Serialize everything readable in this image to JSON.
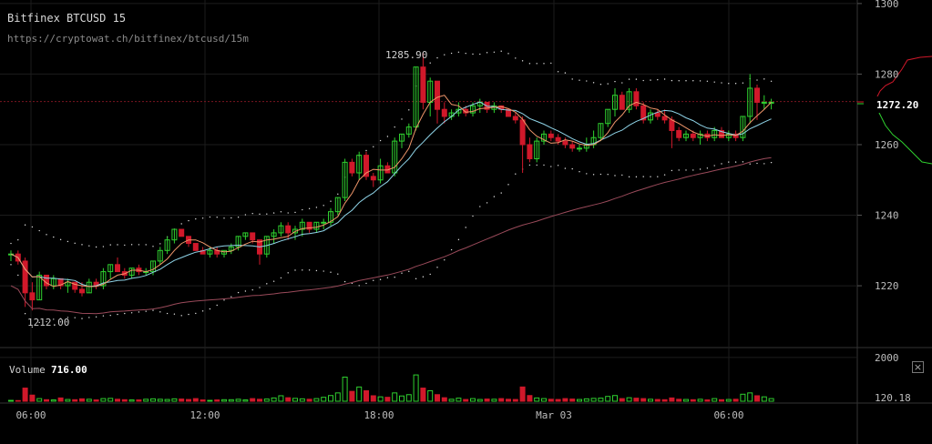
{
  "header": {
    "title": "Bitfinex BTCUSD 15",
    "url": "https://cryptowat.ch/bitfinex/btcusd/15m"
  },
  "volume_panel": {
    "label": "Volume",
    "value": "716.00",
    "close_icon": "close-icon"
  },
  "annotations": {
    "high_label": "1285.90",
    "low_label": "1212.00",
    "last_price": "1272.20"
  },
  "colors": {
    "up": "#2fd02f",
    "down": "#d0182a",
    "ma_fast": "#f0966a",
    "ma_mid": "#8fd4e8",
    "ma_slow": "#9a4a5a",
    "band": "#e0e0e0",
    "grid": "#1c1c1c"
  },
  "chart_data": {
    "type": "candlestick",
    "price_axis": {
      "min": 1203,
      "max": 1301,
      "ticks": [
        1300,
        1280,
        1260,
        1240,
        1220
      ]
    },
    "time_ticks": [
      "06:00",
      "12:00",
      "18:00",
      "Mar 03",
      "06:00"
    ],
    "volume_axis": {
      "ticks": [
        2000
      ],
      "last_volume": "120.18"
    },
    "last_price": 1272.2,
    "ohlc": [
      [
        1229,
        1230,
        1227,
        1229,
        40
      ],
      [
        1229,
        1230,
        1226,
        1227,
        30
      ],
      [
        1227,
        1228,
        1214,
        1218,
        600
      ],
      [
        1218,
        1221,
        1213,
        1216,
        280
      ],
      [
        1216,
        1224,
        1216,
        1223,
        120
      ],
      [
        1223,
        1223,
        1219,
        1220,
        70
      ],
      [
        1220,
        1223,
        1219,
        1222,
        60
      ],
      [
        1222,
        1222,
        1219,
        1220,
        150
      ],
      [
        1220,
        1222,
        1218,
        1221,
        80
      ],
      [
        1221,
        1221,
        1218,
        1219,
        70
      ],
      [
        1219,
        1221,
        1217,
        1218,
        110
      ],
      [
        1218,
        1222,
        1218,
        1221,
        90
      ],
      [
        1221,
        1222,
        1219,
        1220,
        60
      ],
      [
        1220,
        1225,
        1219,
        1224,
        120
      ],
      [
        1224,
        1226,
        1222,
        1226,
        130
      ],
      [
        1226,
        1228,
        1224,
        1224,
        90
      ],
      [
        1224,
        1225,
        1222,
        1223,
        70
      ],
      [
        1223,
        1225,
        1222,
        1225,
        60
      ],
      [
        1225,
        1226,
        1223,
        1224,
        60
      ],
      [
        1224,
        1225,
        1223,
        1224,
        90
      ],
      [
        1224,
        1227,
        1223,
        1227,
        110
      ],
      [
        1227,
        1231,
        1226,
        1230,
        90
      ],
      [
        1230,
        1234,
        1229,
        1233,
        80
      ],
      [
        1233,
        1236,
        1232,
        1236,
        110
      ],
      [
        1236,
        1236,
        1234,
        1234,
        100
      ],
      [
        1234,
        1234,
        1231,
        1232,
        80
      ],
      [
        1232,
        1232,
        1230,
        1230,
        120
      ],
      [
        1230,
        1231,
        1229,
        1229,
        60
      ],
      [
        1229,
        1231,
        1228,
        1230,
        40
      ],
      [
        1230,
        1231,
        1228,
        1229,
        60
      ],
      [
        1229,
        1230,
        1228,
        1230,
        70
      ],
      [
        1230,
        1232,
        1229,
        1231,
        70
      ],
      [
        1231,
        1234,
        1230,
        1234,
        90
      ],
      [
        1234,
        1235,
        1233,
        1235,
        60
      ],
      [
        1235,
        1235,
        1232,
        1233,
        120
      ],
      [
        1233,
        1233,
        1226,
        1229,
        90
      ],
      [
        1229,
        1234,
        1228,
        1234,
        100
      ],
      [
        1234,
        1236,
        1232,
        1235,
        150
      ],
      [
        1235,
        1238,
        1234,
        1237,
        250
      ],
      [
        1237,
        1238,
        1233,
        1235,
        160
      ],
      [
        1235,
        1237,
        1233,
        1236,
        130
      ],
      [
        1236,
        1239,
        1234,
        1238,
        110
      ],
      [
        1238,
        1238,
        1235,
        1236,
        90
      ],
      [
        1236,
        1238,
        1235,
        1238,
        120
      ],
      [
        1238,
        1239,
        1236,
        1238,
        180
      ],
      [
        1238,
        1242,
        1237,
        1241,
        260
      ],
      [
        1241,
        1245,
        1240,
        1245,
        380
      ],
      [
        1245,
        1256,
        1244,
        1255,
        1100
      ],
      [
        1255,
        1256,
        1251,
        1252,
        450
      ],
      [
        1252,
        1258,
        1250,
        1257,
        650
      ],
      [
        1257,
        1258,
        1250,
        1251,
        480
      ],
      [
        1251,
        1252,
        1248,
        1250,
        250
      ],
      [
        1250,
        1256,
        1249,
        1254,
        200
      ],
      [
        1254,
        1255,
        1252,
        1252,
        180
      ],
      [
        1252,
        1262,
        1251,
        1261,
        380
      ],
      [
        1261,
        1263,
        1259,
        1263,
        240
      ],
      [
        1263,
        1266,
        1262,
        1265,
        300
      ],
      [
        1265,
        1282,
        1264,
        1282,
        1200
      ],
      [
        1282,
        1286,
        1270,
        1272,
        600
      ],
      [
        1272,
        1279,
        1268,
        1278,
        480
      ],
      [
        1278,
        1278,
        1266,
        1270,
        300
      ],
      [
        1270,
        1272,
        1266,
        1268,
        160
      ],
      [
        1268,
        1270,
        1267,
        1269,
        90
      ],
      [
        1269,
        1272,
        1268,
        1270,
        140
      ],
      [
        1270,
        1271,
        1268,
        1269,
        80
      ],
      [
        1269,
        1272,
        1268,
        1271,
        120
      ],
      [
        1271,
        1273,
        1269,
        1272,
        80
      ],
      [
        1272,
        1272,
        1269,
        1270,
        100
      ],
      [
        1270,
        1272,
        1269,
        1271,
        90
      ],
      [
        1271,
        1271,
        1269,
        1270,
        120
      ],
      [
        1270,
        1270,
        1268,
        1268,
        90
      ],
      [
        1268,
        1269,
        1266,
        1267,
        80
      ],
      [
        1267,
        1268,
        1252,
        1260,
        650
      ],
      [
        1260,
        1262,
        1255,
        1256,
        260
      ],
      [
        1256,
        1262,
        1255,
        1261,
        150
      ],
      [
        1261,
        1264,
        1260,
        1263,
        120
      ],
      [
        1263,
        1264,
        1261,
        1262,
        90
      ],
      [
        1262,
        1263,
        1260,
        1261,
        80
      ],
      [
        1261,
        1262,
        1259,
        1260,
        120
      ],
      [
        1260,
        1261,
        1258,
        1259,
        100
      ],
      [
        1259,
        1260,
        1258,
        1259,
        80
      ],
      [
        1259,
        1262,
        1258,
        1260,
        110
      ],
      [
        1260,
        1264,
        1259,
        1262,
        130
      ],
      [
        1262,
        1266,
        1261,
        1266,
        140
      ],
      [
        1266,
        1270,
        1265,
        1270,
        220
      ],
      [
        1270,
        1276,
        1268,
        1274,
        260
      ],
      [
        1274,
        1275,
        1270,
        1270,
        120
      ],
      [
        1270,
        1276,
        1269,
        1275,
        160
      ],
      [
        1275,
        1276,
        1270,
        1271,
        140
      ],
      [
        1271,
        1272,
        1266,
        1267,
        120
      ],
      [
        1267,
        1270,
        1266,
        1269,
        90
      ],
      [
        1269,
        1270,
        1267,
        1268,
        80
      ],
      [
        1268,
        1270,
        1266,
        1267,
        70
      ],
      [
        1267,
        1268,
        1259,
        1264,
        150
      ],
      [
        1264,
        1265,
        1261,
        1262,
        90
      ],
      [
        1262,
        1264,
        1261,
        1263,
        80
      ],
      [
        1263,
        1264,
        1261,
        1262,
        70
      ],
      [
        1262,
        1264,
        1260,
        1263,
        90
      ],
      [
        1263,
        1264,
        1261,
        1262,
        60
      ],
      [
        1262,
        1265,
        1261,
        1264,
        120
      ],
      [
        1264,
        1265,
        1262,
        1262,
        70
      ],
      [
        1262,
        1264,
        1261,
        1263,
        80
      ],
      [
        1263,
        1264,
        1261,
        1262,
        90
      ],
      [
        1262,
        1268,
        1261,
        1268,
        320
      ],
      [
        1268,
        1280,
        1266,
        1276,
        380
      ],
      [
        1276,
        1277,
        1267,
        1272,
        250
      ],
      [
        1272,
        1274,
        1270,
        1272,
        200
      ],
      [
        1272,
        1273,
        1270,
        1272,
        120
      ]
    ]
  }
}
